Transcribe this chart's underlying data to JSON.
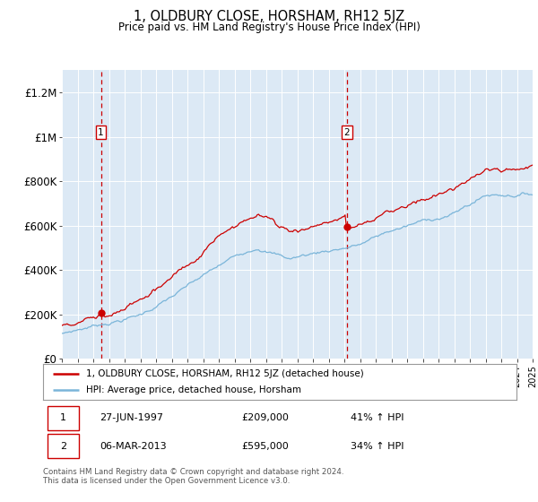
{
  "title": "1, OLDBURY CLOSE, HORSHAM, RH12 5JZ",
  "subtitle": "Price paid vs. HM Land Registry's House Price Index (HPI)",
  "sale1_date": "27-JUN-1997",
  "sale1_price": 209000,
  "sale1_hpi_pct": "41% ↑ HPI",
  "sale2_date": "06-MAR-2013",
  "sale2_price": 595000,
  "sale2_hpi_pct": "34% ↑ HPI",
  "legend_line1": "1, OLDBURY CLOSE, HORSHAM, RH12 5JZ (detached house)",
  "legend_line2": "HPI: Average price, detached house, Horsham",
  "footer": "Contains HM Land Registry data © Crown copyright and database right 2024.\nThis data is licensed under the Open Government Licence v3.0.",
  "hpi_line_color": "#7ab5d9",
  "price_line_color": "#cc0000",
  "sale_marker_color": "#cc0000",
  "dashed_line_color": "#cc0000",
  "background_color": "#dce9f5",
  "grid_color": "#ffffff",
  "ylim": [
    0,
    1300000
  ],
  "yticks": [
    0,
    200000,
    400000,
    600000,
    800000,
    1000000,
    1200000
  ],
  "ytick_labels": [
    "£0",
    "£200K",
    "£400K",
    "£600K",
    "£800K",
    "£1M",
    "£1.2M"
  ],
  "xstart_year": 1995,
  "xend_year": 2025,
  "sale1_year": 1997.49,
  "sale2_year": 2013.17,
  "n_points": 360
}
